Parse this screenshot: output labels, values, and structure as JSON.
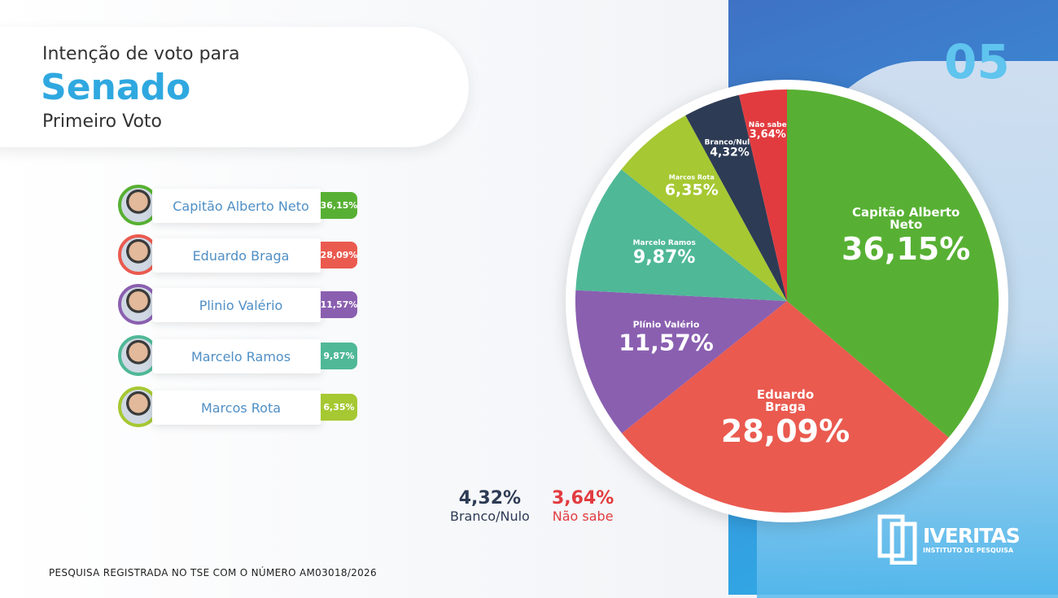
{
  "header": {
    "line1": "Intenção de voto para",
    "title": "Senado",
    "subtitle": "Primeiro Voto",
    "slide_number": "05"
  },
  "candidates": [
    {
      "name": "Capitão Alberto Neto",
      "pct": "36,15%",
      "color": "#57b033"
    },
    {
      "name": "Eduardo Braga",
      "pct": "28,09%",
      "color": "#ea5a4f"
    },
    {
      "name": "Plinio Valério",
      "pct": "11,57%",
      "color": "#8a5fb0"
    },
    {
      "name": "Marcelo Ramos",
      "pct": "9,87%",
      "color": "#4fb897"
    },
    {
      "name": "Marcos Rota",
      "pct": "6,35%",
      "color": "#a6c832"
    }
  ],
  "legend": {
    "branco_value": "4,32%",
    "branco_label": "Branco/Nulo",
    "naosabe_value": "3,64%",
    "naosabe_label": "Não sabe"
  },
  "footer": "PESQUISA REGISTRADA NO TSE COM O NÚMERO AM03018/2026",
  "logo": {
    "name": "IVERITAS",
    "tagline": "INSTITUTO DE PESQUISA"
  },
  "chart_data": {
    "type": "pie",
    "title": "Intenção de voto para Senado - Primeiro Voto",
    "categories": [
      "Capitão Alberto Neto",
      "Eduardo Braga",
      "Plínio Valério",
      "Marcelo Ramos",
      "Marcos Rota",
      "Branco/Nulo",
      "Não sabe"
    ],
    "values": [
      36.15,
      28.09,
      11.57,
      9.87,
      6.35,
      4.32,
      3.64
    ],
    "labels": [
      "36,15%",
      "28,09%",
      "11,57%",
      "9,87%",
      "6,35%",
      "4,32%",
      "3,64%"
    ],
    "colors": [
      "#57b033",
      "#ea5a4f",
      "#8a5fb0",
      "#4fb897",
      "#a6c832",
      "#2d3b55",
      "#e23b3f"
    ]
  }
}
